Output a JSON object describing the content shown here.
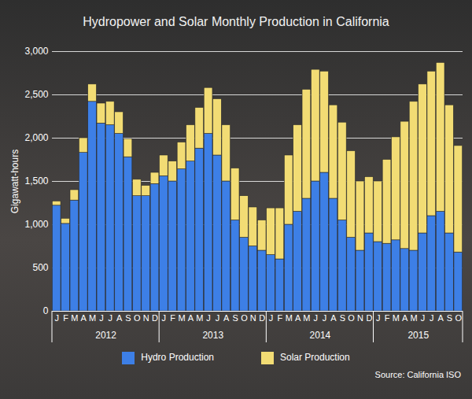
{
  "chart_data": {
    "type": "bar",
    "stacked": true,
    "title": "Hydropower and Solar Monthly Production in California",
    "y_label": "Gigawatt-hours",
    "source": "Source: California ISO",
    "categories": [
      "J",
      "F",
      "M",
      "A",
      "M",
      "J",
      "J",
      "A",
      "S",
      "O",
      "N",
      "D",
      "J",
      "F",
      "M",
      "A",
      "M",
      "J",
      "J",
      "A",
      "S",
      "O",
      "N",
      "D",
      "J",
      "F",
      "M",
      "A",
      "M",
      "J",
      "J",
      "A",
      "S",
      "O",
      "N",
      "D",
      "J",
      "F",
      "M",
      "A",
      "M",
      "J",
      "J",
      "A",
      "S",
      "O"
    ],
    "groups": [
      {
        "label": "2012",
        "size": 12
      },
      {
        "label": "2013",
        "size": 12
      },
      {
        "label": "2014",
        "size": 12
      },
      {
        "label": "2015",
        "size": 10
      }
    ],
    "series": [
      {
        "name": "Hydro Production",
        "color": "#3d7fe6",
        "values": [
          1220,
          1010,
          1280,
          1830,
          2420,
          2170,
          2150,
          2050,
          1780,
          1330,
          1330,
          1470,
          1560,
          1500,
          1640,
          1730,
          1880,
          2050,
          1800,
          1500,
          1050,
          850,
          750,
          700,
          650,
          600,
          1000,
          1150,
          1300,
          1500,
          1600,
          1300,
          1050,
          850,
          700,
          900,
          800,
          780,
          820,
          720,
          700,
          900,
          1100,
          1150,
          900,
          680
        ]
      },
      {
        "name": "Solar Production",
        "color": "#f2dc74",
        "values": [
          50,
          60,
          120,
          170,
          200,
          230,
          270,
          250,
          210,
          190,
          120,
          130,
          240,
          230,
          310,
          420,
          470,
          530,
          650,
          650,
          600,
          480,
          450,
          350,
          540,
          590,
          800,
          1000,
          1260,
          1290,
          1170,
          1080,
          1130,
          1000,
          800,
          650,
          700,
          970,
          1190,
          1470,
          1720,
          1720,
          1670,
          1720,
          1480,
          1230
        ]
      }
    ],
    "ylim": [
      0,
      3000
    ],
    "yticks": [
      0,
      500,
      {
        "value": 1000,
        "label": "1,000"
      },
      {
        "value": 1500,
        "label": "1,500"
      },
      {
        "value": 2000,
        "label": "2,000"
      },
      {
        "value": 2500,
        "label": "2,500"
      },
      {
        "value": 3000,
        "label": "3,000"
      }
    ],
    "grid": true,
    "legend": "bottom"
  }
}
